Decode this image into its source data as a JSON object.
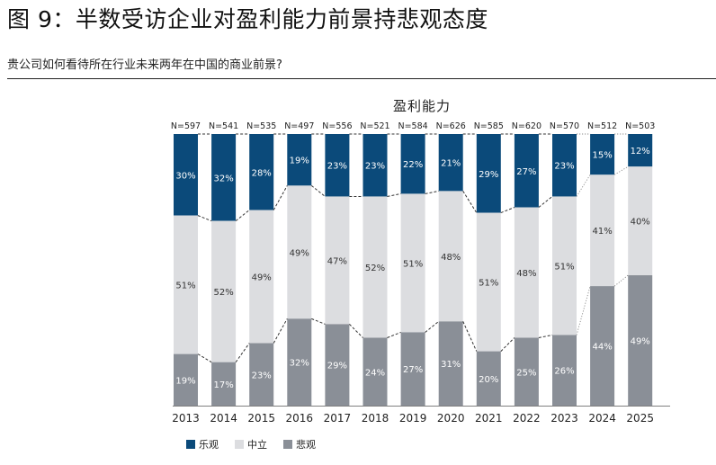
{
  "header": {
    "title": "图 9：半数受访企业对盈利能力前景持悲观态度",
    "subtitle": "贵公司如何看待所在行业未来两年在中国的商业前景?"
  },
  "chart_data": {
    "type": "bar",
    "stacked": true,
    "normalized": true,
    "title": "盈利能力",
    "categories": [
      "2013",
      "2014",
      "2015",
      "2016",
      "2017",
      "2018",
      "2019",
      "2020",
      "2021",
      "2022",
      "2023",
      "2024",
      "2025"
    ],
    "n_labels": [
      "N=597",
      "N=541",
      "N=535",
      "N=497",
      "N=556",
      "N=521",
      "N=584",
      "N=626",
      "N=585",
      "N=620",
      "N=570",
      "N=512",
      "N=503"
    ],
    "series": [
      {
        "name": "乐观",
        "color": "#0b4a7a",
        "values": [
          30,
          32,
          28,
          19,
          23,
          23,
          22,
          21,
          29,
          27,
          23,
          15,
          12
        ]
      },
      {
        "name": "中立",
        "color": "#dcdde0",
        "values": [
          51,
          52,
          49,
          49,
          47,
          52,
          51,
          48,
          51,
          48,
          51,
          41,
          40
        ]
      },
      {
        "name": "悲观",
        "color": "#8a8f97",
        "values": [
          19,
          17,
          23,
          32,
          29,
          24,
          27,
          31,
          20,
          25,
          26,
          44,
          49
        ]
      }
    ],
    "value_suffix": "%",
    "ylim": [
      0,
      100
    ]
  }
}
